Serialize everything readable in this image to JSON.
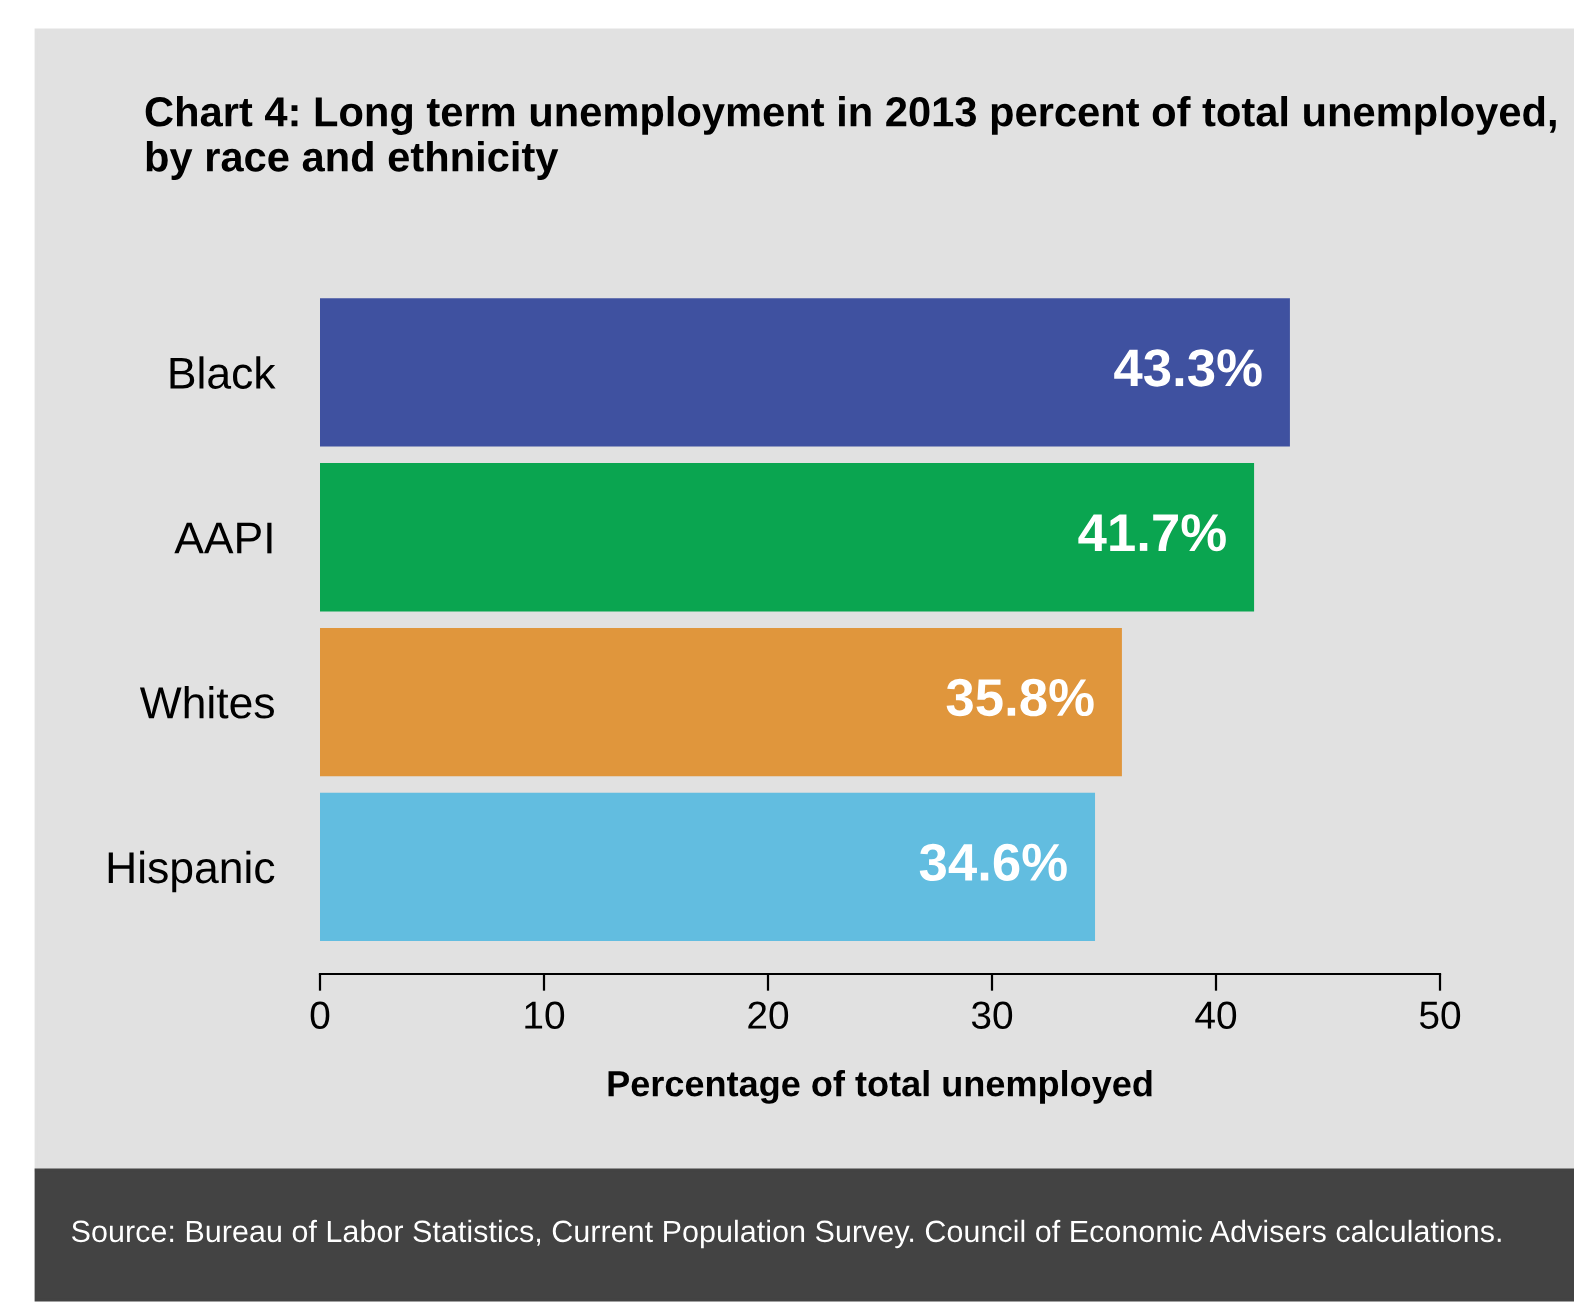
{
  "chart_data": {
    "type": "bar",
    "orientation": "horizontal",
    "title": "Chart 4: Long term unemployment in 2013 percent of total unemployed, by race and ethnicity",
    "xlabel": "Percentage of total unemployed",
    "categories": [
      "Black",
      "AAPI",
      "Whites",
      "Hispanic"
    ],
    "values": [
      43.3,
      41.7,
      35.8,
      34.6
    ],
    "colors": [
      "#3f51a0",
      "#0aa550",
      "#e0963c",
      "#62bde0"
    ],
    "xlim": [
      0,
      50
    ],
    "xticks": [
      0,
      10,
      20,
      30,
      40,
      50
    ],
    "value_labels": [
      "43.3%",
      "41.7%",
      "35.8%",
      "34.6%"
    ],
    "grid": false,
    "legend": false,
    "annotations": [
      "Source: Bureau of Labor Statistics, Current Population Survey. Council of Economic Advisers calculations."
    ]
  }
}
